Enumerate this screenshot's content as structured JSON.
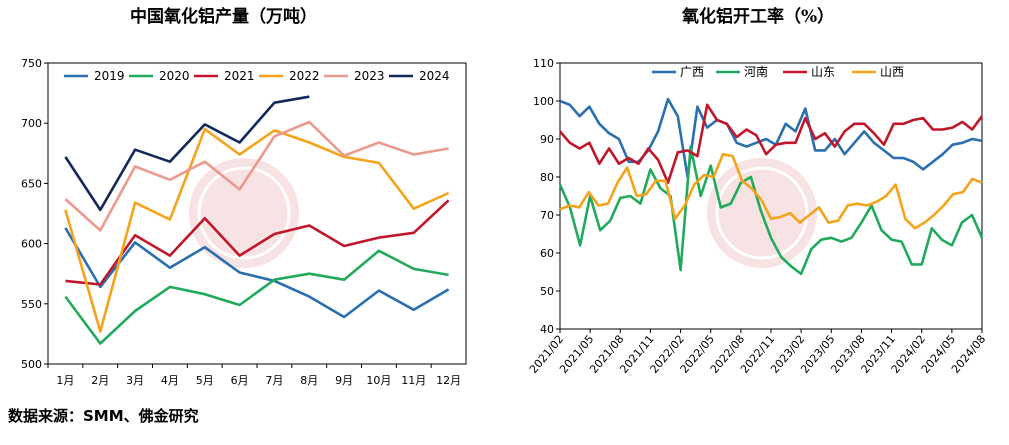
{
  "source_text": "数据来源：SMM、佛金研究",
  "chart_data": [
    {
      "type": "line",
      "title": "中国氧化铝产量（万吨）",
      "categories": [
        "1月",
        "2月",
        "3月",
        "4月",
        "5月",
        "6月",
        "7月",
        "8月",
        "9月",
        "10月",
        "11月",
        "12月"
      ],
      "ylim": [
        500,
        750
      ],
      "yticks": [
        500,
        550,
        600,
        650,
        700,
        750
      ],
      "legend_position": "top",
      "grid": false,
      "series": [
        {
          "name": "2019",
          "color": "#2a6fb0",
          "values": [
            613,
            564,
            601,
            580,
            597,
            576,
            569,
            556,
            539,
            561,
            545,
            562
          ]
        },
        {
          "name": "2020",
          "color": "#22aa5c",
          "values": [
            556,
            517,
            544,
            564,
            558,
            549,
            570,
            575,
            570,
            594,
            579,
            574
          ]
        },
        {
          "name": "2021",
          "color": "#c0172b",
          "values": [
            569,
            566,
            607,
            590,
            621,
            590,
            608,
            615,
            598,
            605,
            609,
            636
          ]
        },
        {
          "name": "2022",
          "color": "#f5a31a",
          "values": [
            628,
            527,
            634,
            620,
            695,
            674,
            694,
            684,
            672,
            667,
            629,
            642
          ]
        },
        {
          "name": "2023",
          "color": "#ec9a8e",
          "values": [
            637,
            611,
            664,
            653,
            668,
            645,
            689,
            701,
            673,
            684,
            674,
            679
          ]
        },
        {
          "name": "2024",
          "color": "#13295a",
          "values": [
            672,
            628,
            678,
            668,
            699,
            684,
            717,
            722,
            null,
            null,
            null,
            null
          ]
        }
      ]
    },
    {
      "type": "line",
      "title": "氧化铝开工率（%）",
      "x_ticks": [
        "2021/02",
        "2021/05",
        "2021/08",
        "2021/11",
        "2022/02",
        "2022/05",
        "2022/08",
        "2022/11",
        "2023/02",
        "2023/05",
        "2023/08",
        "2023/11",
        "2024/02",
        "2024/05",
        "2024/08"
      ],
      "ylim": [
        40,
        110
      ],
      "yticks": [
        40,
        50,
        60,
        70,
        80,
        90,
        100,
        110
      ],
      "legend_position": "top",
      "grid": false,
      "series": [
        {
          "name": "广西",
          "color": "#2a6fb0",
          "values": [
            100,
            99,
            96,
            98.5,
            94,
            91.5,
            90,
            84,
            84,
            87,
            92,
            100.5,
            96,
            80,
            98.5,
            93,
            95,
            94,
            89,
            88,
            89,
            90,
            88.5,
            94,
            92,
            98,
            87,
            87,
            90,
            86,
            89,
            92,
            89,
            87,
            85,
            85,
            84,
            82,
            84,
            86,
            88.5,
            89,
            90,
            89.5
          ]
        },
        {
          "name": "河南",
          "color": "#22aa5c",
          "values": [
            78,
            72,
            62,
            75,
            66,
            68.5,
            74.5,
            75,
            73,
            82,
            77,
            75,
            55.5,
            88,
            75,
            83,
            72,
            73,
            78.5,
            80,
            71,
            64,
            59,
            56.5,
            54.5,
            61,
            63.5,
            64,
            63,
            64,
            68,
            72.5,
            66,
            63.5,
            63,
            57,
            57,
            66.5,
            63.5,
            62,
            68,
            70,
            64
          ]
        },
        {
          "name": "山东",
          "color": "#c0172b",
          "values": [
            92,
            89,
            87.5,
            89,
            83.5,
            87.5,
            83.5,
            85,
            83.5,
            87.5,
            84.5,
            78.5,
            86.5,
            87,
            85.5,
            99,
            95,
            94,
            90.5,
            92.5,
            91,
            86,
            88.5,
            89,
            89,
            95.5,
            90,
            91.5,
            88,
            92,
            94,
            94,
            91.5,
            88.5,
            94,
            94,
            95,
            95.5,
            92.5,
            92.5,
            93,
            94.5,
            92.5,
            96
          ]
        },
        {
          "name": "山西",
          "color": "#f5a31a",
          "values": [
            71.5,
            72.5,
            72,
            76,
            72.5,
            73,
            78.5,
            82.5,
            75,
            75.5,
            79,
            79,
            69,
            72.5,
            78,
            80.5,
            80,
            86,
            85.5,
            79,
            77,
            74,
            69,
            69.5,
            70.5,
            68,
            70,
            72,
            68,
            68.5,
            72.5,
            73,
            72.5,
            73.5,
            75,
            78,
            69,
            66.5,
            68,
            70,
            72.5,
            75.5,
            76,
            79.5,
            78.5
          ]
        }
      ]
    }
  ]
}
